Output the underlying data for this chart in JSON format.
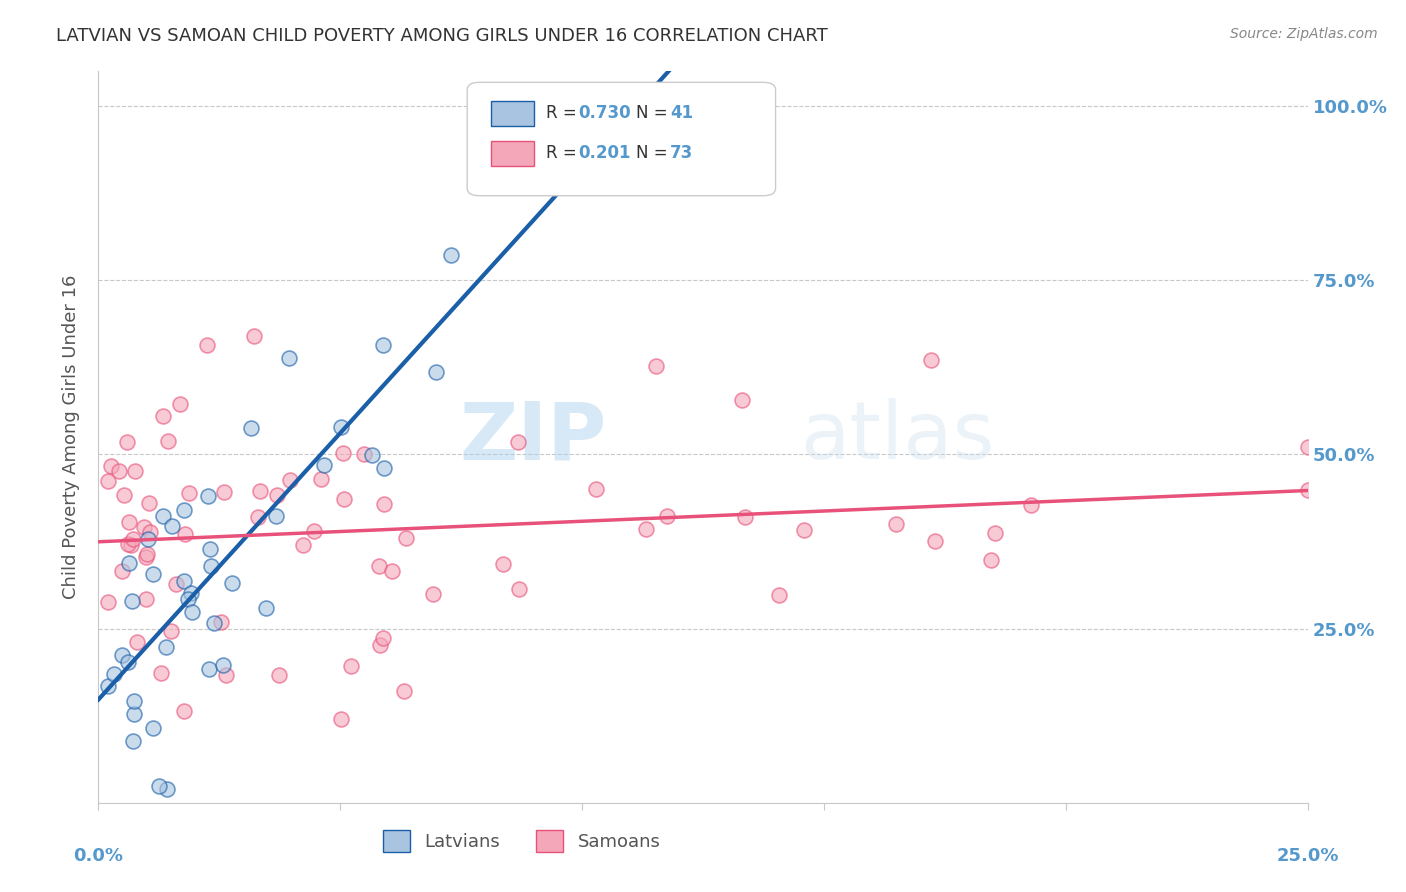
{
  "title": "LATVIAN VS SAMOAN CHILD POVERTY AMONG GIRLS UNDER 16 CORRELATION CHART",
  "source": "Source: ZipAtlas.com",
  "ylabel": "Child Poverty Among Girls Under 16",
  "xlabel_latvians": "Latvians",
  "xlabel_samoans": "Samoans",
  "x_label_start": "0.0%",
  "x_label_end": "25.0%",
  "y_ticks": [
    0.0,
    0.25,
    0.5,
    0.75,
    1.0
  ],
  "y_tick_labels": [
    "",
    "25.0%",
    "50.0%",
    "75.0%",
    "100.0%"
  ],
  "xlim": [
    0.0,
    0.25
  ],
  "ylim": [
    0.0,
    1.05
  ],
  "latvian_R": 0.73,
  "latvian_N": 41,
  "samoan_R": 0.201,
  "samoan_N": 73,
  "latvian_color": "#a8c4e0",
  "latvian_line_color": "#1a5fa8",
  "samoan_color": "#f4a7b9",
  "samoan_line_color": "#e8527a",
  "background_color": "#ffffff",
  "grid_color": "#c8c8c8",
  "title_color": "#333333",
  "axis_label_color": "#5599cc",
  "watermark_zip": "ZIP",
  "watermark_atlas": "atlas",
  "marker_size": 12,
  "marker_alpha": 0.6,
  "line_width": 2.5
}
